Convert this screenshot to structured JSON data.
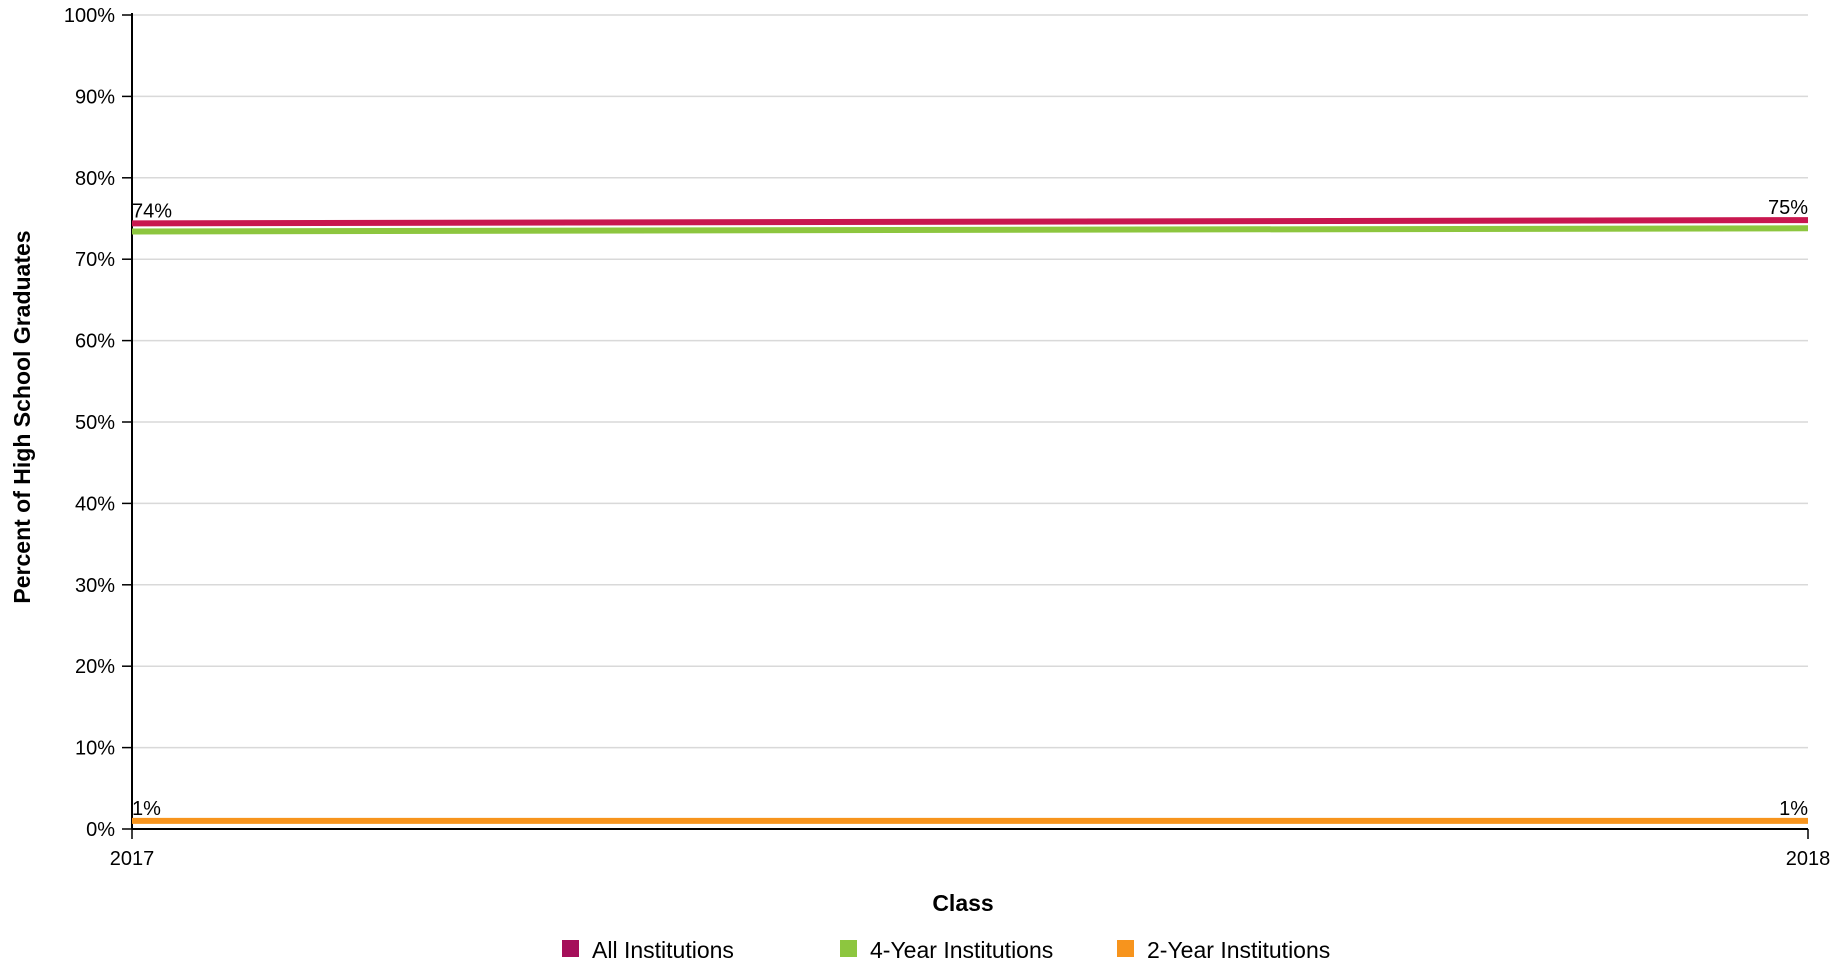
{
  "chart_data": {
    "type": "line",
    "title": "",
    "xlabel": "Class",
    "ylabel": "Percent of High School Graduates",
    "x": [
      "2017",
      "2018"
    ],
    "ylim": [
      0,
      100
    ],
    "yticks": [
      0,
      10,
      20,
      30,
      40,
      50,
      60,
      70,
      80,
      90,
      100
    ],
    "ytick_labels": [
      "0%",
      "10%",
      "20%",
      "30%",
      "40%",
      "50%",
      "60%",
      "70%",
      "80%",
      "90%",
      "100%"
    ],
    "grid": true,
    "legend_position": "bottom",
    "series": [
      {
        "name": "All Institutions",
        "color": "#a50f5a",
        "line_color": "#c8174f",
        "values": [
          74.4,
          74.8
        ],
        "labels": [
          "74%",
          "75%"
        ]
      },
      {
        "name": "4-Year Institutions",
        "color": "#8dc63f",
        "line_color": "#8dc63f",
        "values": [
          73.4,
          73.8
        ],
        "labels": [
          "",
          ""
        ]
      },
      {
        "name": "2-Year Institutions",
        "color": "#f7941d",
        "line_color": "#f7941d",
        "values": [
          1.0,
          1.0
        ],
        "labels": [
          "1%",
          "1%"
        ]
      }
    ]
  }
}
